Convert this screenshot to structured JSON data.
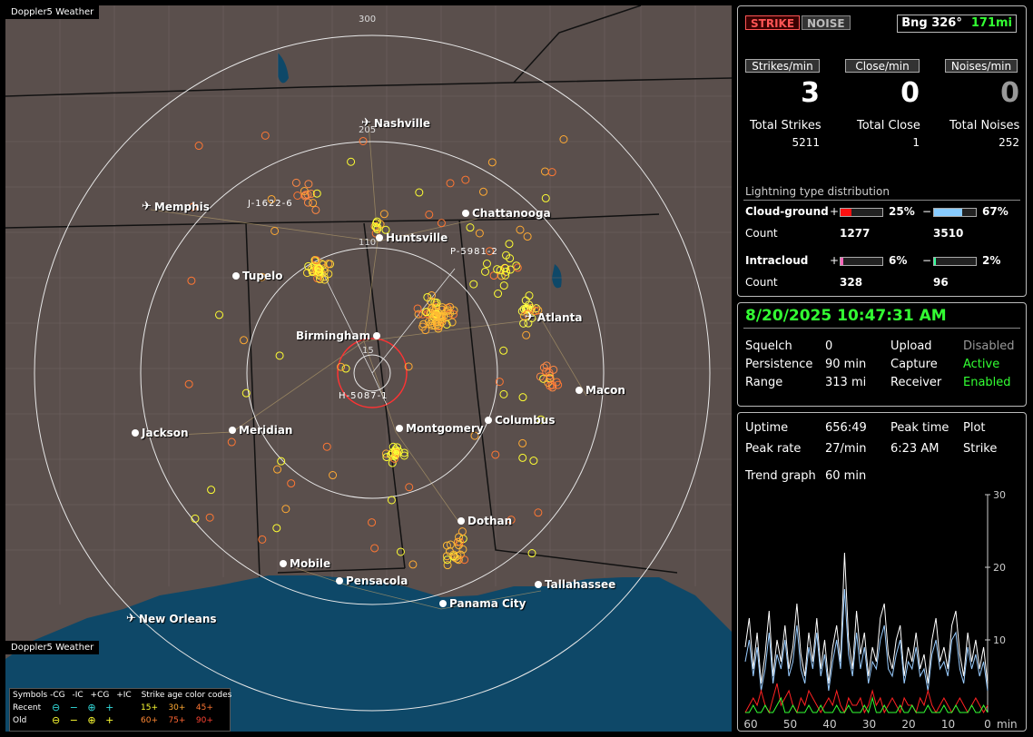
{
  "map": {
    "title": "Doppler5 Weather",
    "footer": "Doppler5 Weather",
    "ring_labels": [
      "300",
      "205",
      "110",
      "15"
    ],
    "cities": [
      {
        "name": "Nashville",
        "icon": "airport-icon"
      },
      {
        "name": "Memphis",
        "icon": "airport-icon"
      },
      {
        "name": "Chattanooga",
        "icon": "dot-icon"
      },
      {
        "name": "Huntsville",
        "icon": "dot-icon"
      },
      {
        "name": "Tupelo",
        "icon": "dot-icon"
      },
      {
        "name": "Atlanta",
        "icon": "airport-icon"
      },
      {
        "name": "Birmingham",
        "icon": "dot-icon"
      },
      {
        "name": "Macon",
        "icon": "dot-icon"
      },
      {
        "name": "Jackson",
        "icon": "dot-icon"
      },
      {
        "name": "Meridian",
        "icon": "dot-icon"
      },
      {
        "name": "Montgomery",
        "icon": "dot-icon"
      },
      {
        "name": "Columbus",
        "icon": "dot-icon"
      },
      {
        "name": "Dothan",
        "icon": "dot-icon"
      },
      {
        "name": "Mobile",
        "icon": "dot-icon"
      },
      {
        "name": "Pensacola",
        "icon": "dot-icon"
      },
      {
        "name": "Tallahassee",
        "icon": "dot-icon"
      },
      {
        "name": "Panama City",
        "icon": "dot-icon"
      },
      {
        "name": "New Orleans",
        "icon": "airport-icon"
      }
    ],
    "storms": [
      "J-1622-6",
      "P-5981-2",
      "H-5087-1"
    ]
  },
  "legend": {
    "symbols_label": "Symbols",
    "cols": [
      "-CG",
      "-IC",
      "+CG",
      "+IC"
    ],
    "age_title": "Strike age color codes",
    "recent_label": "Recent",
    "old_label": "Old",
    "recent_ages": [
      "15+",
      "30+",
      "45+"
    ],
    "old_ages": [
      "60+",
      "75+",
      "90+"
    ],
    "age_colors": [
      "#ffff33",
      "#ffaa33",
      "#ff7733"
    ]
  },
  "panel1": {
    "strike_btn": "STRIKE",
    "noise_btn": "NOISE",
    "bearing": "Bng 326°",
    "distance": "171mi",
    "headers": [
      "Strikes/min",
      "Close/min",
      "Noises/min"
    ],
    "rates": [
      "3",
      "0",
      "0"
    ],
    "total_labels": [
      "Total Strikes",
      "Total Close",
      "Total Noises"
    ],
    "totals": [
      "5211",
      "1",
      "252"
    ],
    "dist_title": "Lightning type distribution",
    "cg_label": "Cloud-ground",
    "cg_pos_pct": "25%",
    "cg_neg_pct": "67%",
    "cg_pos_fill": 0.25,
    "cg_neg_fill": 0.67,
    "count_label": "Count",
    "cg_pos_count": "1277",
    "cg_neg_count": "3510",
    "ic_label": "Intracloud",
    "ic_pos_pct": "6%",
    "ic_neg_pct": "2%",
    "ic_pos_fill": 0.06,
    "ic_neg_fill": 0.02,
    "ic_pos_count": "328",
    "ic_neg_count": "96",
    "plus": "+",
    "minus": "−"
  },
  "panel2": {
    "datetime": "8/20/2025 10:47:31 AM",
    "rows": [
      {
        "k1": "Squelch",
        "v1": "0",
        "k2": "Upload",
        "v2": "Disabled"
      },
      {
        "k1": "Persistence",
        "v1": "90 min",
        "k2": "Capture",
        "v2": "Active"
      },
      {
        "k1": "Range",
        "v1": "313 mi",
        "k2": "Receiver",
        "v2": "Enabled"
      }
    ]
  },
  "panel3": {
    "uptime_label": "Uptime",
    "uptime": "656:49",
    "peak_time_label": "Peak time",
    "plot_label": "Plot",
    "peak_rate_label": "Peak rate",
    "peak_rate": "27/min",
    "peak_time": "6:23 AM",
    "plot_value": "Strike",
    "trend_label": "Trend graph",
    "trend_value": "60 min"
  },
  "chart_data": {
    "type": "line",
    "x_ticks": [
      "60",
      "50",
      "40",
      "30",
      "20",
      "10",
      "0"
    ],
    "x_unit": "min",
    "y_ticks": [
      "30",
      "20",
      "10"
    ],
    "ylim": [
      0,
      30
    ],
    "xlim": [
      60,
      0
    ],
    "series": [
      {
        "color": "#ffffff",
        "values": [
          9,
          13,
          6,
          11,
          4,
          8,
          14,
          5,
          10,
          7,
          12,
          6,
          9,
          15,
          8,
          5,
          11,
          7,
          13,
          6,
          10,
          4,
          9,
          12,
          7,
          22,
          10,
          6,
          14,
          8,
          11,
          5,
          9,
          7,
          13,
          15,
          8,
          6,
          10,
          12,
          5,
          9,
          7,
          11,
          6,
          8,
          4,
          10,
          13,
          7,
          9,
          6,
          12,
          14,
          8,
          5,
          11,
          7,
          10,
          6,
          9,
          4
        ]
      },
      {
        "color": "#99ccff",
        "values": [
          7,
          10,
          5,
          9,
          3,
          6,
          11,
          4,
          8,
          6,
          10,
          5,
          7,
          12,
          6,
          4,
          9,
          6,
          11,
          5,
          8,
          3,
          7,
          10,
          6,
          17,
          8,
          5,
          11,
          6,
          9,
          4,
          7,
          6,
          10,
          12,
          6,
          5,
          8,
          10,
          4,
          7,
          6,
          9,
          5,
          6,
          3,
          8,
          10,
          6,
          7,
          5,
          10,
          11,
          6,
          4,
          9,
          6,
          8,
          5,
          7,
          3
        ]
      },
      {
        "color": "#ff2222",
        "values": [
          0,
          1,
          2,
          1,
          3,
          1,
          0,
          2,
          4,
          1,
          2,
          3,
          1,
          0,
          2,
          1,
          3,
          2,
          1,
          0,
          1,
          2,
          1,
          3,
          1,
          0,
          2,
          1,
          1,
          2,
          0,
          1,
          3,
          1,
          2,
          0,
          1,
          2,
          1,
          0,
          2,
          1,
          1,
          0,
          2,
          1,
          3,
          1,
          0,
          1,
          2,
          1,
          0,
          1,
          2,
          1,
          0,
          1,
          2,
          1,
          0,
          1
        ]
      },
      {
        "color": "#33ff33",
        "values": [
          0,
          0,
          1,
          0,
          0,
          1,
          0,
          0,
          1,
          2,
          0,
          0,
          1,
          0,
          0,
          0,
          1,
          0,
          0,
          1,
          0,
          0,
          0,
          1,
          0,
          0,
          1,
          0,
          0,
          0,
          1,
          0,
          2,
          0,
          0,
          1,
          0,
          0,
          0,
          1,
          0,
          0,
          1,
          0,
          0,
          0,
          1,
          0,
          0,
          0,
          1,
          0,
          0,
          1,
          0,
          0,
          0,
          1,
          0,
          0,
          1,
          0
        ]
      }
    ]
  }
}
